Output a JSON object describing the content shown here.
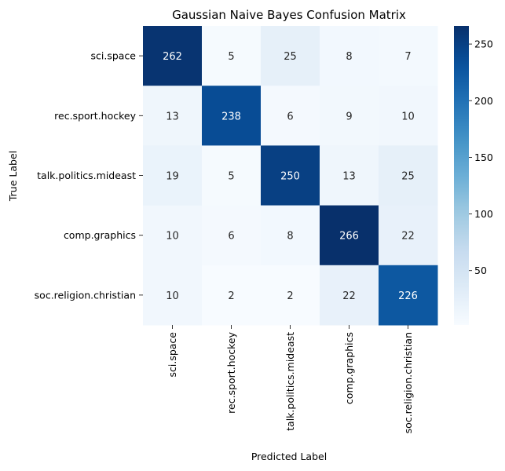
{
  "chart_data": {
    "type": "heatmap",
    "title": "Gaussian Naive Bayes Confusion Matrix",
    "xlabel": "Predicted Label",
    "ylabel": "True Label",
    "x_categories": [
      "sci.space",
      "rec.sport.hockey",
      "talk.politics.mideast",
      "comp.graphics",
      "soc.religion.christian"
    ],
    "y_categories": [
      "sci.space",
      "rec.sport.hockey",
      "talk.politics.mideast",
      "comp.graphics",
      "soc.religion.christian"
    ],
    "values": [
      [
        262,
        5,
        25,
        8,
        7
      ],
      [
        13,
        238,
        6,
        9,
        10
      ],
      [
        19,
        5,
        250,
        13,
        25
      ],
      [
        10,
        6,
        8,
        266,
        22
      ],
      [
        10,
        2,
        2,
        22,
        226
      ]
    ],
    "colormap": "Blues",
    "colorbar": {
      "min": 2,
      "max": 266,
      "ticks": [
        50,
        100,
        150,
        200,
        250
      ]
    },
    "grid": false
  }
}
